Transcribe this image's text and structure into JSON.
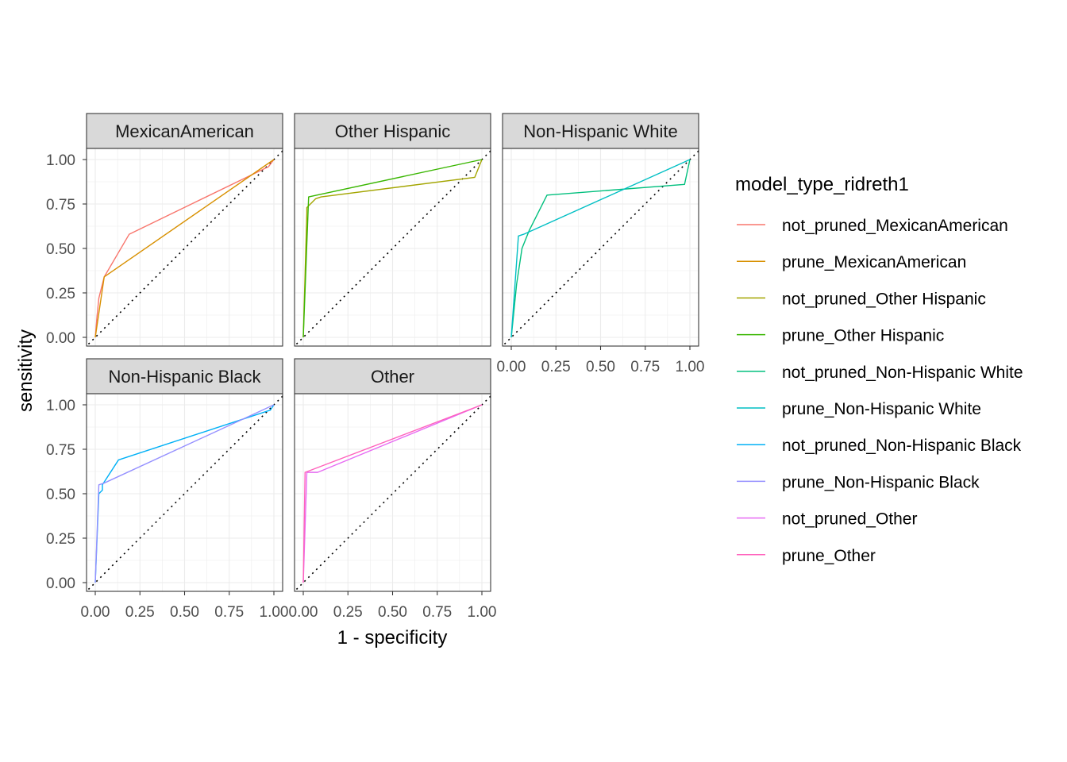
{
  "chart_data": {
    "type": "line",
    "xlabel": "1 - specificity",
    "ylabel": "sensitivity",
    "xlim": [
      0,
      1
    ],
    "ylim": [
      0,
      1
    ],
    "x_ticks": [
      "0.00",
      "0.25",
      "0.50",
      "0.75",
      "1.00"
    ],
    "y_ticks": [
      "0.00",
      "0.25",
      "0.50",
      "0.75",
      "1.00"
    ],
    "reference_line": "diagonal dotted y = x",
    "grid": true,
    "legend": {
      "title": "model_type_ridreth1",
      "placement": "right",
      "entries": [
        {
          "name": "not_pruned_MexicanAmerican",
          "color": "#F8766D"
        },
        {
          "name": "prune_MexicanAmerican",
          "color": "#D89000"
        },
        {
          "name": "not_pruned_Other Hispanic",
          "color": "#A3A500"
        },
        {
          "name": "prune_Other Hispanic",
          "color": "#39B600"
        },
        {
          "name": "not_pruned_Non-Hispanic White",
          "color": "#00BF7D"
        },
        {
          "name": "prune_Non-Hispanic White",
          "color": "#00BFC4"
        },
        {
          "name": "not_pruned_Non-Hispanic Black",
          "color": "#00B0F6"
        },
        {
          "name": "prune_Non-Hispanic Black",
          "color": "#9590FF"
        },
        {
          "name": "not_pruned_Other",
          "color": "#E76BF3"
        },
        {
          "name": "prune_Other",
          "color": "#FF62BC"
        }
      ]
    },
    "panels": [
      {
        "title": "MexicanAmerican",
        "series": [
          {
            "name": "not_pruned_MexicanAmerican",
            "color": "#F8766D",
            "points": [
              [
                0,
                0
              ],
              [
                0.01,
                0.12
              ],
              [
                0.02,
                0.22
              ],
              [
                0.04,
                0.3
              ],
              [
                0.05,
                0.34
              ],
              [
                0.19,
                0.58
              ],
              [
                0.97,
                0.96
              ],
              [
                1,
                1
              ]
            ]
          },
          {
            "name": "prune_MexicanAmerican",
            "color": "#D89000",
            "points": [
              [
                0,
                0
              ],
              [
                0.05,
                0.34
              ],
              [
                1,
                1
              ]
            ]
          }
        ]
      },
      {
        "title": "Other Hispanic",
        "series": [
          {
            "name": "not_pruned_Other Hispanic",
            "color": "#A3A500",
            "points": [
              [
                0,
                0
              ],
              [
                0.02,
                0.7
              ],
              [
                0.02,
                0.73
              ],
              [
                0.07,
                0.78
              ],
              [
                0.1,
                0.79
              ],
              [
                0.96,
                0.9
              ],
              [
                1,
                1
              ]
            ]
          },
          {
            "name": "prune_Other Hispanic",
            "color": "#39B600",
            "points": [
              [
                0,
                0
              ],
              [
                0.03,
                0.79
              ],
              [
                1,
                1
              ]
            ]
          }
        ]
      },
      {
        "title": "Non-Hispanic White",
        "series": [
          {
            "name": "not_pruned_Non-Hispanic White",
            "color": "#00BF7D",
            "points": [
              [
                0,
                0
              ],
              [
                0.03,
                0.3
              ],
              [
                0.06,
                0.5
              ],
              [
                0.1,
                0.6
              ],
              [
                0.2,
                0.8
              ],
              [
                0.97,
                0.86
              ],
              [
                1,
                1
              ]
            ]
          },
          {
            "name": "prune_Non-Hispanic White",
            "color": "#00BFC4",
            "points": [
              [
                0,
                0
              ],
              [
                0.04,
                0.57
              ],
              [
                0.07,
                0.58
              ],
              [
                1,
                1
              ]
            ]
          }
        ]
      },
      {
        "title": "Non-Hispanic Black",
        "series": [
          {
            "name": "not_pruned_Non-Hispanic Black",
            "color": "#00B0F6",
            "points": [
              [
                0,
                0
              ],
              [
                0.02,
                0.5
              ],
              [
                0.04,
                0.52
              ],
              [
                0.04,
                0.55
              ],
              [
                0.13,
                0.69
              ],
              [
                0.98,
                0.97
              ],
              [
                1,
                1
              ]
            ]
          },
          {
            "name": "prune_Non-Hispanic Black",
            "color": "#9590FF",
            "points": [
              [
                0,
                0
              ],
              [
                0.02,
                0.55
              ],
              [
                0.05,
                0.56
              ],
              [
                1,
                1
              ]
            ]
          }
        ]
      },
      {
        "title": "Other",
        "series": [
          {
            "name": "not_pruned_Other",
            "color": "#E76BF3",
            "points": [
              [
                0,
                0
              ],
              [
                0.02,
                0.62
              ],
              [
                0.08,
                0.62
              ],
              [
                1,
                1
              ]
            ]
          },
          {
            "name": "prune_Other",
            "color": "#FF62BC",
            "points": [
              [
                0,
                0
              ],
              [
                0.01,
                0.62
              ],
              [
                1,
                1
              ]
            ]
          }
        ]
      }
    ]
  }
}
